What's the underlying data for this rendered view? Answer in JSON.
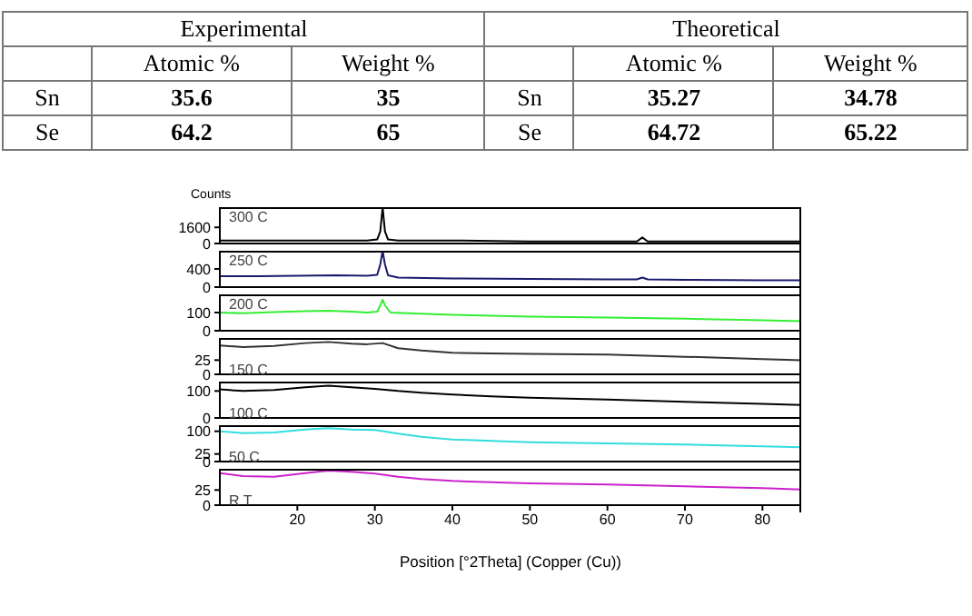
{
  "chart_data": [
    {
      "type": "other",
      "annotations": [
        "Experimental",
        "Theoretical",
        "Atomic %",
        "Weight %",
        "Atomic %",
        "Weight %",
        "Sn",
        "35.6",
        "35",
        "Sn",
        "35.27",
        "34.78",
        "Se",
        "64.2",
        "65",
        "Se",
        "64.72",
        "65.22"
      ]
    },
    {
      "type": "line",
      "ylabel": "Counts",
      "annotations": [
        "300 C"
      ],
      "x": [
        10,
        15,
        20,
        25,
        29,
        30.3,
        30.7,
        31,
        31.3,
        31.7,
        33,
        40,
        50,
        60,
        63.8,
        64.5,
        65.2,
        70,
        80,
        85
      ],
      "series": [
        {
          "color": "#000000",
          "values": [
            300,
            300,
            300,
            300,
            300,
            400,
            1200,
            3600,
            1200,
            400,
            300,
            300,
            200,
            200,
            200,
            600,
            200,
            200,
            200,
            200
          ]
        }
      ],
      "xlim": [
        10,
        85
      ],
      "xticks": [
        20,
        30,
        40,
        50,
        60,
        70,
        80
      ],
      "ylim": [
        0,
        3600
      ],
      "yticks": [
        0,
        1600
      ],
      "tick_labels": "y"
    },
    {
      "type": "line",
      "annotations": [
        "250 C"
      ],
      "x": [
        10,
        15,
        20,
        25,
        29,
        30.3,
        30.7,
        31,
        31.3,
        31.7,
        33,
        40,
        50,
        60,
        63.8,
        64.5,
        65.2,
        70,
        80,
        85
      ],
      "series": [
        {
          "color": "#1a1a6e",
          "values": [
            240,
            240,
            250,
            260,
            250,
            270,
            500,
            800,
            500,
            260,
            210,
            190,
            180,
            170,
            170,
            210,
            170,
            160,
            150,
            150
          ]
        }
      ],
      "xlim": [
        10,
        85
      ],
      "xticks": [
        20,
        30,
        40,
        50,
        60,
        70,
        80
      ],
      "ylim": [
        0,
        800
      ],
      "yticks": [
        0,
        400
      ],
      "tick_labels": "y"
    },
    {
      "type": "line",
      "annotations": [
        "200 C"
      ],
      "x": [
        10,
        13,
        17,
        21,
        24,
        27,
        29,
        30.3,
        30.7,
        31,
        31.3,
        32,
        35,
        40,
        45,
        50,
        60,
        70,
        80,
        85
      ],
      "series": [
        {
          "color": "#33ee33",
          "values": [
            100,
            96,
            102,
            108,
            110,
            105,
            100,
            105,
            140,
            170,
            140,
            100,
            95,
            88,
            82,
            78,
            72,
            66,
            58,
            52
          ]
        }
      ],
      "xlim": [
        10,
        85
      ],
      "xticks": [
        20,
        30,
        40,
        50,
        60,
        70,
        80
      ],
      "ylim": [
        0,
        200
      ],
      "yticks": [
        0,
        100
      ],
      "tick_labels": "y"
    },
    {
      "type": "line",
      "annotations": [
        "150 C"
      ],
      "x": [
        10,
        13,
        17,
        21,
        24,
        27,
        29,
        31,
        33,
        36,
        40,
        45,
        50,
        60,
        70,
        80,
        85
      ],
      "series": [
        {
          "color": "#333333",
          "values": [
            51,
            48,
            50,
            55,
            57,
            54,
            53,
            55,
            46,
            42,
            38,
            37,
            36,
            35,
            31,
            27,
            25
          ]
        }
      ],
      "xlim": [
        10,
        85
      ],
      "xticks": [
        20,
        30,
        40,
        50,
        60,
        70,
        80
      ],
      "ylim": [
        0,
        64
      ],
      "yticks": [
        0,
        25
      ],
      "tick_labels": "y"
    },
    {
      "type": "line",
      "annotations": [
        "100 C"
      ],
      "x": [
        10,
        13,
        17,
        21,
        24,
        27,
        30,
        33,
        36,
        40,
        45,
        50,
        60,
        70,
        80,
        85
      ],
      "series": [
        {
          "color": "#000000",
          "values": [
            106,
            100,
            104,
            114,
            120,
            114,
            108,
            100,
            94,
            87,
            80,
            75,
            68,
            60,
            52,
            48
          ]
        }
      ],
      "xlim": [
        10,
        85
      ],
      "xticks": [
        20,
        30,
        40,
        50,
        60,
        70,
        80
      ],
      "ylim": [
        0,
        135
      ],
      "yticks": [
        0,
        100
      ],
      "tick_labels": "y"
    },
    {
      "type": "line",
      "annotations": [
        "50 C"
      ],
      "x": [
        10,
        13,
        17,
        21,
        24,
        27,
        30,
        33,
        36,
        40,
        45,
        50,
        60,
        70,
        80,
        85
      ],
      "series": [
        {
          "color": "#33dddd",
          "values": [
            100,
            94,
            96,
            106,
            110,
            106,
            104,
            92,
            82,
            73,
            68,
            64,
            60,
            56,
            50,
            47
          ]
        }
      ],
      "xlim": [
        10,
        85
      ],
      "xticks": [
        20,
        30,
        40,
        50,
        60,
        70,
        80
      ],
      "ylim": [
        0,
        120
      ],
      "yticks": [
        0,
        25,
        100
      ],
      "tick_labels": "y"
    },
    {
      "type": "line",
      "annotations": [
        "R T"
      ],
      "xlabel": "Position [°2Theta] (Copper (Cu))",
      "x": [
        10,
        13,
        17,
        21,
        24,
        27,
        30,
        33,
        36,
        40,
        45,
        50,
        60,
        70,
        80,
        85
      ],
      "series": [
        {
          "color": "#cc22cc",
          "values": [
            53,
            48,
            47,
            53,
            57,
            55,
            52,
            47,
            43,
            40,
            38,
            36,
            34,
            31,
            28,
            26
          ]
        }
      ],
      "xlim": [
        10,
        85
      ],
      "xticks": [
        20,
        30,
        40,
        50,
        60,
        70,
        80
      ],
      "ylim": [
        0,
        60
      ],
      "yticks": [
        0,
        25
      ]
    }
  ]
}
